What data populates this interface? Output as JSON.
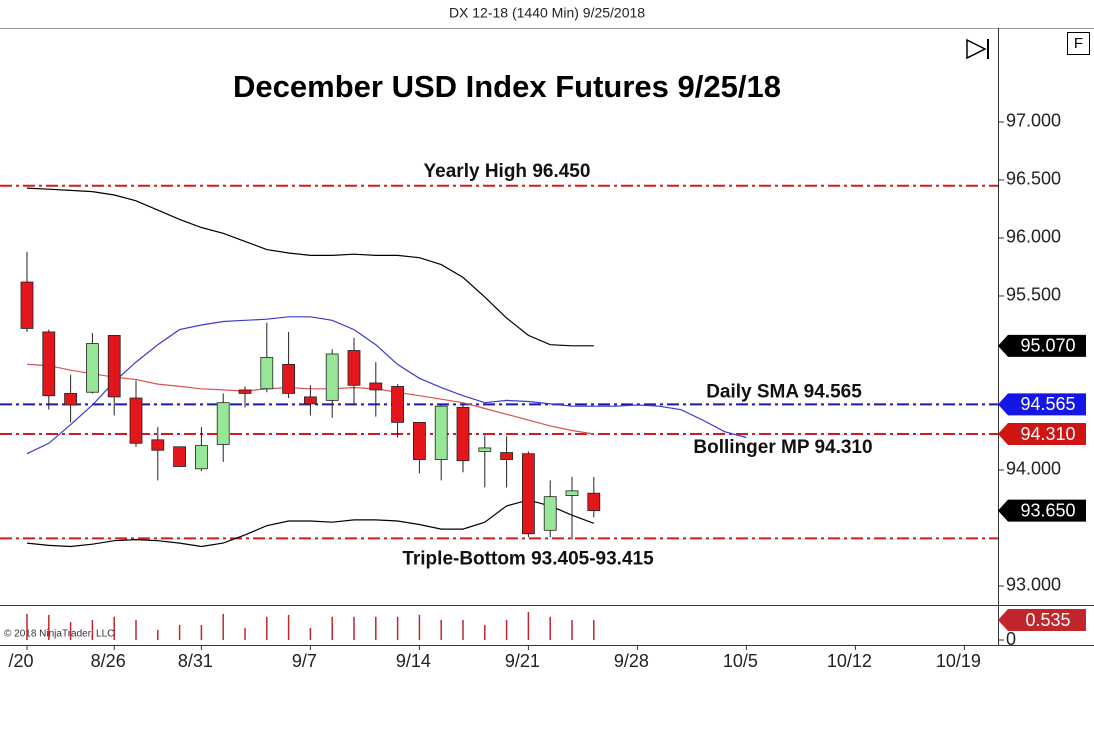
{
  "header": "DX 12-18 (1440 Min)  9/25/2018",
  "copyright": "© 2018 NinjaTrader, LLC",
  "toolbar_button": "F",
  "chart_data": {
    "type": "candlestick",
    "title": "December USD Index Futures 9/25/18",
    "categories": [
      "/20",
      null,
      null,
      null,
      "8/26",
      null,
      null,
      null,
      "8/31",
      null,
      null,
      null,
      null,
      "9/7",
      null,
      null,
      null,
      null,
      "9/14",
      null,
      null,
      null,
      null,
      "9/21",
      null,
      null,
      null,
      null,
      "9/28",
      null,
      null,
      null,
      null,
      "10/5",
      null,
      null,
      null,
      null,
      "10/12",
      null,
      null,
      null,
      null,
      "10/19",
      null
    ],
    "open": [
      95.62,
      95.19,
      94.66,
      94.67,
      95.16,
      94.62,
      94.26,
      94.2,
      94.01,
      94.22,
      94.69,
      94.7,
      94.91,
      94.63,
      94.6,
      95.03,
      94.75,
      94.72,
      94.41,
      94.09,
      94.54,
      94.16,
      94.15,
      94.14,
      93.48,
      93.78,
      93.8,
      null,
      null,
      null,
      null,
      null,
      null,
      null,
      null,
      null,
      null,
      null,
      null,
      null,
      null,
      null,
      null,
      null,
      null
    ],
    "high": [
      95.88,
      95.21,
      94.82,
      95.18,
      95.16,
      94.77,
      94.37,
      94.2,
      94.37,
      94.66,
      94.72,
      95.27,
      95.19,
      94.73,
      95.04,
      95.14,
      94.93,
      94.74,
      94.41,
      94.56,
      94.56,
      94.3,
      94.29,
      94.16,
      93.91,
      93.94,
      93.94,
      null,
      null,
      null,
      null,
      null,
      null,
      null,
      null,
      null,
      null,
      null,
      null,
      null,
      null,
      null,
      null,
      null,
      null
    ],
    "low": [
      95.19,
      94.52,
      94.41,
      94.66,
      94.47,
      94.2,
      93.91,
      94.03,
      93.99,
      94.07,
      94.54,
      94.67,
      94.62,
      94.47,
      94.45,
      94.56,
      94.46,
      94.28,
      93.97,
      93.91,
      93.98,
      93.85,
      93.85,
      93.42,
      93.42,
      93.4,
      93.59,
      null,
      null,
      null,
      null,
      null,
      null,
      null,
      null,
      null,
      null,
      null,
      null,
      null,
      null,
      null,
      null,
      null,
      null
    ],
    "close": [
      95.22,
      94.64,
      94.56,
      95.09,
      94.63,
      94.23,
      94.17,
      94.03,
      94.21,
      94.58,
      94.66,
      94.97,
      94.66,
      94.57,
      95.0,
      94.73,
      94.69,
      94.41,
      94.09,
      94.55,
      94.08,
      94.19,
      94.09,
      93.45,
      93.77,
      93.82,
      93.65,
      null,
      null,
      null,
      null,
      null,
      null,
      null,
      null,
      null,
      null,
      null,
      null,
      null,
      null,
      null,
      null,
      null,
      null
    ],
    "up_color": "#98e698",
    "down_color": "#e3161b",
    "series": [
      {
        "color": "#000000",
        "values": [
          96.43,
          96.42,
          96.41,
          96.4,
          96.37,
          96.32,
          96.24,
          96.16,
          96.09,
          96.04,
          95.97,
          95.9,
          95.87,
          95.85,
          95.85,
          95.86,
          95.85,
          95.85,
          95.83,
          95.77,
          95.66,
          95.49,
          95.31,
          95.16,
          95.08,
          95.07,
          95.07,
          null,
          null,
          null,
          null,
          null,
          null,
          null,
          null,
          null,
          null,
          null,
          null,
          null,
          null,
          null,
          null,
          null,
          null
        ]
      },
      {
        "color": "#d9534f",
        "values": [
          94.91,
          94.9,
          94.86,
          94.83,
          94.8,
          94.78,
          94.74,
          94.72,
          94.7,
          94.69,
          94.68,
          94.7,
          94.71,
          94.7,
          94.7,
          94.71,
          94.7,
          94.67,
          94.64,
          94.61,
          94.58,
          94.53,
          94.48,
          94.43,
          94.38,
          94.34,
          94.31,
          null,
          null,
          null,
          null,
          null,
          null,
          null,
          null,
          null,
          null,
          null,
          null,
          null,
          null,
          null,
          null,
          null,
          null
        ]
      },
      {
        "color": "#000000",
        "values": [
          93.37,
          93.35,
          93.34,
          93.36,
          93.39,
          93.4,
          93.39,
          93.37,
          93.34,
          93.37,
          93.44,
          93.52,
          93.56,
          93.56,
          93.55,
          93.57,
          93.57,
          93.56,
          93.53,
          93.49,
          93.49,
          93.55,
          93.69,
          93.74,
          93.69,
          93.61,
          93.54,
          null,
          null,
          null,
          null,
          null,
          null,
          null,
          null,
          null,
          null,
          null,
          null,
          null,
          null,
          null,
          null,
          null,
          null
        ]
      },
      {
        "color": "#3a3ad0",
        "values": [
          94.14,
          94.23,
          94.39,
          94.56,
          94.76,
          94.93,
          95.08,
          95.21,
          95.25,
          95.28,
          95.29,
          95.3,
          95.32,
          95.32,
          95.29,
          95.21,
          95.08,
          94.91,
          94.79,
          94.71,
          94.64,
          94.58,
          94.6,
          94.59,
          94.57,
          94.55,
          94.55,
          94.55,
          94.56,
          94.55,
          94.52,
          94.43,
          94.33,
          94.28,
          null,
          null,
          null,
          null,
          null,
          null,
          null,
          null,
          null,
          null,
          null
        ]
      }
    ],
    "ylim": [
      92.836,
      97.81
    ],
    "yticks": [
      {
        "value": 93,
        "label": "93.000"
      },
      {
        "value": 94,
        "label": "94.000"
      },
      {
        "value": 95.5,
        "label": "95.500"
      },
      {
        "value": 96,
        "label": "96.000"
      },
      {
        "value": 96.5,
        "label": "96.500"
      },
      {
        "value": 97,
        "label": "97.000"
      }
    ],
    "hlines": [
      {
        "label": "Yearly High 96.450",
        "value": 96.45,
        "color": "#d01c1c"
      },
      {
        "label": "Daily SMA 94.565",
        "value": 94.565,
        "color": "#1a1aa8"
      },
      {
        "label": "Bollinger MP 94.310",
        "value": 94.31,
        "color": "#d01c1c"
      },
      {
        "label": "Triple-Bottom 93.405-93.415",
        "value": 93.41,
        "color": "#d01c1c"
      }
    ],
    "price_labels": [
      {
        "value": 95.07,
        "label": "95.070",
        "color": "#000000"
      },
      {
        "value": 94.565,
        "label": "94.565",
        "color": "#1515e6"
      },
      {
        "value": 94.31,
        "label": "94.310",
        "color": "#d01414"
      },
      {
        "value": 93.65,
        "label": "93.650",
        "color": "#000000"
      }
    ],
    "volume": {
      "values": [
        0.7,
        0.67,
        0.48,
        0.535,
        0.62,
        0.535,
        0.27,
        0.4,
        0.4,
        0.7,
        0.32,
        0.62,
        0.67,
        0.32,
        0.62,
        0.62,
        0.62,
        0.62,
        0.67,
        0.535,
        0.535,
        0.4,
        0.535,
        0.75,
        0.62,
        0.535,
        0.535,
        null,
        null,
        null,
        null,
        null,
        null,
        null,
        null,
        null,
        null,
        null,
        null,
        null,
        null,
        null,
        null,
        null,
        null
      ],
      "color": "#c0262b",
      "ylim": [
        0,
        0.91
      ],
      "yticks": [
        0
      ],
      "price_labels": [
        {
          "value": 0.535,
          "label": "0.535",
          "color": "#c0262b"
        }
      ]
    }
  }
}
